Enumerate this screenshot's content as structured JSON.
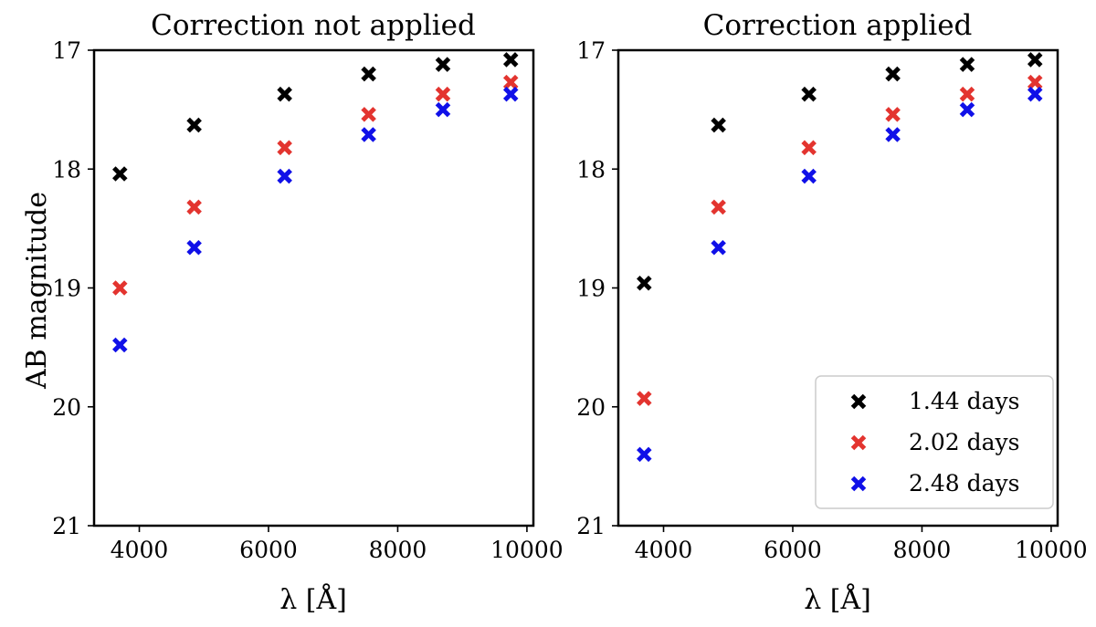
{
  "chart_data": [
    {
      "type": "scatter",
      "title": "Correction not applied",
      "xlabel": "λ [Å]",
      "ylabel": "AB magnitude",
      "xlim": [
        3300,
        10100
      ],
      "ylim": [
        21,
        17
      ],
      "y_inverted": true,
      "xticks": [
        4000,
        6000,
        8000,
        10000
      ],
      "yticks": [
        17,
        18,
        19,
        20,
        21
      ],
      "marker": "x-filled",
      "legend": null,
      "series": [
        {
          "name": "1.44 days",
          "color": "#000000",
          "x": [
            3700,
            4850,
            6250,
            7550,
            8700,
            9750
          ],
          "y": [
            18.04,
            17.63,
            17.37,
            17.2,
            17.12,
            17.08
          ]
        },
        {
          "name": "2.02 days",
          "color": "#e3342f",
          "x": [
            3700,
            4850,
            6250,
            7550,
            8700,
            9750
          ],
          "y": [
            19.0,
            18.32,
            17.82,
            17.54,
            17.37,
            17.27
          ]
        },
        {
          "name": "2.48 days",
          "color": "#1010e8",
          "x": [
            3700,
            4850,
            6250,
            7550,
            8700,
            9750
          ],
          "y": [
            19.48,
            18.66,
            18.06,
            17.71,
            17.5,
            17.37
          ]
        }
      ]
    },
    {
      "type": "scatter",
      "title": "Correction applied",
      "xlabel": "λ [Å]",
      "ylabel": "",
      "xlim": [
        3300,
        10100
      ],
      "ylim": [
        21,
        17
      ],
      "y_inverted": true,
      "xticks": [
        4000,
        6000,
        8000,
        10000
      ],
      "yticks": [
        17,
        18,
        19,
        20,
        21
      ],
      "marker": "x-filled",
      "legend": "lower-right",
      "series": [
        {
          "name": "1.44 days",
          "color": "#000000",
          "x": [
            3700,
            4850,
            6250,
            7550,
            8700,
            9750
          ],
          "y": [
            18.96,
            17.63,
            17.37,
            17.2,
            17.12,
            17.08
          ]
        },
        {
          "name": "2.02 days",
          "color": "#e3342f",
          "x": [
            3700,
            4850,
            6250,
            7550,
            8700,
            9750
          ],
          "y": [
            19.93,
            18.32,
            17.82,
            17.54,
            17.37,
            17.27
          ]
        },
        {
          "name": "2.48 days",
          "color": "#1010e8",
          "x": [
            3700,
            4850,
            6250,
            7550,
            8700,
            9750
          ],
          "y": [
            20.4,
            18.66,
            18.06,
            17.71,
            17.5,
            17.37
          ]
        }
      ]
    }
  ]
}
